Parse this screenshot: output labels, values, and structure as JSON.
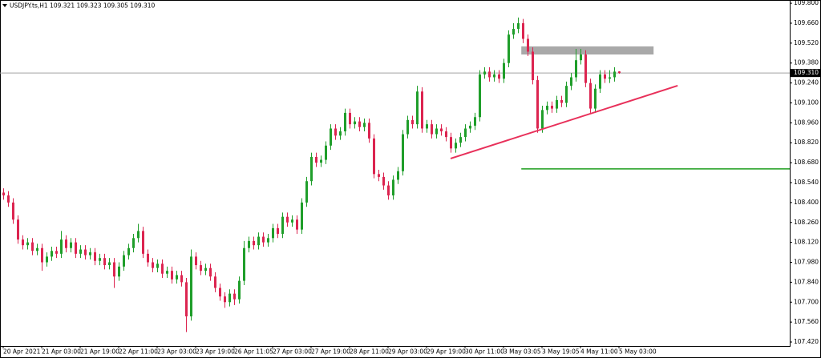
{
  "chart_data": {
    "type": "candlestick",
    "symbol": "USDJPY.ts,H1",
    "ohlc_labels": [
      "109.321",
      "109.323",
      "109.305",
      "109.310"
    ],
    "categories": [
      "20 Apr 2021",
      null,
      null,
      null,
      null,
      null,
      null,
      null,
      "21 Apr 03:00",
      null,
      null,
      null,
      null,
      null,
      null,
      null,
      "21 Apr 19:00",
      null,
      null,
      null,
      null,
      null,
      null,
      null,
      "22 Apr 11:00",
      null,
      null,
      null,
      null,
      null,
      null,
      null,
      "23 Apr 03:00",
      null,
      null,
      null,
      null,
      null,
      null,
      null,
      "23 Apr 19:00",
      null,
      null,
      null,
      null,
      null,
      null,
      null,
      "26 Apr 11:05",
      null,
      null,
      null,
      null,
      null,
      null,
      null,
      "27 Apr 03:00",
      null,
      null,
      null,
      null,
      null,
      null,
      null,
      "27 Apr 19:00",
      null,
      null,
      null,
      null,
      null,
      null,
      null,
      "28 Apr 11:00",
      null,
      null,
      null,
      null,
      null,
      null,
      null,
      "29 Apr 03:00",
      null,
      null,
      null,
      null,
      null,
      null,
      null,
      "29 Apr 19:00",
      null,
      null,
      null,
      null,
      null,
      null,
      null,
      "30 Apr 11:00",
      null,
      null,
      null,
      null,
      null,
      null,
      null,
      "3 May 03:05",
      null,
      null,
      null,
      null,
      null,
      null,
      null,
      "3 May 19:05",
      null,
      null,
      null,
      null,
      null,
      null,
      null,
      "4 May 11:00",
      null,
      null,
      null,
      null,
      null,
      null,
      null,
      "5 May 03:00"
    ],
    "open": [
      108.47,
      108.45,
      108.4,
      108.28,
      108.14,
      108.1,
      108.12,
      108.06,
      108.08,
      107.98,
      108.02,
      108.06,
      108.04,
      108.14,
      108.08,
      108.12,
      108.04,
      108.07,
      108.03,
      108.05,
      107.99,
      108.01,
      107.96,
      107.98,
      107.88,
      107.95,
      108.03,
      108.08,
      108.15,
      108.2,
      108.04,
      107.98,
      107.94,
      107.97,
      107.9,
      107.92,
      107.86,
      107.89,
      107.84,
      107.6,
      108.02,
      107.96,
      107.92,
      107.94,
      107.88,
      107.8,
      107.74,
      107.7,
      107.76,
      107.72,
      107.85,
      108.08,
      108.13,
      108.1,
      108.16,
      108.12,
      108.15,
      108.22,
      108.18,
      108.3,
      108.26,
      108.28,
      108.21,
      108.4,
      108.55,
      108.72,
      108.68,
      108.7,
      108.8,
      108.92,
      108.87,
      108.9,
      109.03,
      108.95,
      108.97,
      108.93,
      108.96,
      108.85,
      108.6,
      108.58,
      108.52,
      108.45,
      108.56,
      108.62,
      108.88,
      108.98,
      108.95,
      109.18,
      108.92,
      108.95,
      108.88,
      108.92,
      108.9,
      108.86,
      108.78,
      108.82,
      108.86,
      108.92,
      108.94,
      109.0,
      109.3,
      109.32,
      109.28,
      109.3,
      109.27,
      109.38,
      109.58,
      109.62,
      109.66,
      109.55,
      109.46,
      109.26,
      108.92,
      109.05,
      109.08,
      109.06,
      109.12,
      109.1,
      109.22,
      109.28,
      109.4,
      109.44,
      109.24,
      109.06,
      109.2,
      109.3,
      109.27,
      109.28,
      109.321
    ],
    "high": [
      108.5,
      108.48,
      108.43,
      108.31,
      108.17,
      108.15,
      108.15,
      108.11,
      108.11,
      108.05,
      108.09,
      108.09,
      108.2,
      108.17,
      108.15,
      108.15,
      108.1,
      108.1,
      108.08,
      108.08,
      108.04,
      108.04,
      108.01,
      108.01,
      107.98,
      108.06,
      108.11,
      108.18,
      108.25,
      108.23,
      108.07,
      108.01,
      108.0,
      108.0,
      107.95,
      107.95,
      107.92,
      107.92,
      107.87,
      108.07,
      108.05,
      107.99,
      107.97,
      107.97,
      107.91,
      107.83,
      107.77,
      107.79,
      107.79,
      107.88,
      108.13,
      108.16,
      108.16,
      108.19,
      108.19,
      108.18,
      108.25,
      108.25,
      108.33,
      108.33,
      108.31,
      108.31,
      108.43,
      108.58,
      108.75,
      108.75,
      108.73,
      108.83,
      108.95,
      108.95,
      108.93,
      109.06,
      109.06,
      109.0,
      109.0,
      108.99,
      108.99,
      108.88,
      108.63,
      108.61,
      108.55,
      108.59,
      108.65,
      108.91,
      109.01,
      109.01,
      109.22,
      109.21,
      108.98,
      108.98,
      108.95,
      108.95,
      108.93,
      108.89,
      108.85,
      108.89,
      108.95,
      108.97,
      109.03,
      109.33,
      109.35,
      109.35,
      109.33,
      109.33,
      109.41,
      109.61,
      109.66,
      109.7,
      109.69,
      109.58,
      109.49,
      109.29,
      109.08,
      109.11,
      109.11,
      109.15,
      109.15,
      109.25,
      109.31,
      109.48,
      109.48,
      109.47,
      109.27,
      109.23,
      109.33,
      109.33,
      109.33,
      109.35,
      109.323
    ],
    "low": [
      108.42,
      108.37,
      108.25,
      108.11,
      108.07,
      108.07,
      108.03,
      108.03,
      107.92,
      107.95,
      107.99,
      108.01,
      108.01,
      108.05,
      108.05,
      108.01,
      108.01,
      108.0,
      108.0,
      107.96,
      107.96,
      107.93,
      107.93,
      107.8,
      107.85,
      107.92,
      108.0,
      108.05,
      108.12,
      108.01,
      107.95,
      107.91,
      107.91,
      107.87,
      107.87,
      107.83,
      107.83,
      107.81,
      107.49,
      107.57,
      107.93,
      107.89,
      107.89,
      107.85,
      107.77,
      107.71,
      107.66,
      107.67,
      107.68,
      107.69,
      107.82,
      108.05,
      108.07,
      108.07,
      108.09,
      108.09,
      108.12,
      108.15,
      108.15,
      108.23,
      108.23,
      108.18,
      108.18,
      108.37,
      108.52,
      108.65,
      108.65,
      108.67,
      108.77,
      108.84,
      108.84,
      108.87,
      108.92,
      108.92,
      108.9,
      108.9,
      108.82,
      108.57,
      108.55,
      108.49,
      108.42,
      108.42,
      108.53,
      108.59,
      108.85,
      108.92,
      108.92,
      108.89,
      108.89,
      108.85,
      108.85,
      108.87,
      108.83,
      108.75,
      108.75,
      108.79,
      108.83,
      108.89,
      108.91,
      108.97,
      109.27,
      109.25,
      109.25,
      109.24,
      109.24,
      109.35,
      109.55,
      109.59,
      109.52,
      109.43,
      109.23,
      108.89,
      108.89,
      109.02,
      109.03,
      109.03,
      109.07,
      109.07,
      109.19,
      109.25,
      109.37,
      109.21,
      109.03,
      109.03,
      109.17,
      109.24,
      109.24,
      109.25,
      109.305
    ],
    "close": [
      108.45,
      108.4,
      108.28,
      108.14,
      108.1,
      108.12,
      108.06,
      108.08,
      107.98,
      108.02,
      108.06,
      108.04,
      108.14,
      108.08,
      108.12,
      108.04,
      108.07,
      108.03,
      108.05,
      107.99,
      108.01,
      107.96,
      107.98,
      107.88,
      107.95,
      108.03,
      108.08,
      108.15,
      108.2,
      108.04,
      107.98,
      107.94,
      107.97,
      107.9,
      107.92,
      107.86,
      107.89,
      107.84,
      107.6,
      108.02,
      107.96,
      107.92,
      107.94,
      107.88,
      107.8,
      107.74,
      107.7,
      107.76,
      107.72,
      107.85,
      108.08,
      108.13,
      108.1,
      108.16,
      108.12,
      108.15,
      108.22,
      108.18,
      108.3,
      108.26,
      108.28,
      108.21,
      108.4,
      108.55,
      108.72,
      108.68,
      108.7,
      108.8,
      108.92,
      108.87,
      108.9,
      109.03,
      108.95,
      108.97,
      108.93,
      108.96,
      108.85,
      108.6,
      108.58,
      108.52,
      108.45,
      108.56,
      108.62,
      108.88,
      108.98,
      108.95,
      109.18,
      108.92,
      108.95,
      108.88,
      108.92,
      108.9,
      108.86,
      108.78,
      108.82,
      108.86,
      108.92,
      108.94,
      109.0,
      109.3,
      109.32,
      109.28,
      109.3,
      109.27,
      109.38,
      109.58,
      109.62,
      109.66,
      109.55,
      109.46,
      109.26,
      108.92,
      109.05,
      109.08,
      109.06,
      109.12,
      109.1,
      109.22,
      109.28,
      109.4,
      109.44,
      109.24,
      109.06,
      109.2,
      109.3,
      109.27,
      109.28,
      109.32,
      109.31
    ],
    "up_color": "#1f9e2a",
    "down_color": "#dc2450",
    "ylim": [
      107.392,
      109.823
    ],
    "yticks": [
      {
        "value": 109.8,
        "label": "109.800"
      },
      {
        "value": 109.66,
        "label": "109.660"
      },
      {
        "value": 109.52,
        "label": "109.520"
      },
      {
        "value": 109.38,
        "label": "109.380"
      },
      {
        "value": 109.24,
        "label": "109.240"
      },
      {
        "value": 109.1,
        "label": "109.100"
      },
      {
        "value": 108.96,
        "label": "108.960"
      },
      {
        "value": 108.82,
        "label": "108.820"
      },
      {
        "value": 108.68,
        "label": "108.680"
      },
      {
        "value": 108.54,
        "label": "108.540"
      },
      {
        "value": 108.4,
        "label": "108.400"
      },
      {
        "value": 108.26,
        "label": "108.260"
      },
      {
        "value": 108.12,
        "label": "108.120"
      },
      {
        "value": 107.98,
        "label": "107.980"
      },
      {
        "value": 107.84,
        "label": "107.840"
      },
      {
        "value": 107.7,
        "label": "107.700"
      },
      {
        "value": 107.56,
        "label": "107.560"
      },
      {
        "value": 107.42,
        "label": "107.420"
      }
    ],
    "current_price": {
      "value": 109.31,
      "label": "109.310"
    },
    "zone": {
      "x": [
        107.7,
        135.2
      ],
      "y": [
        109.44,
        109.497
      ],
      "color": "#a9a9a9"
    },
    "trendline": {
      "x": [
        93,
        140.2
      ],
      "y": [
        108.709,
        109.221
      ],
      "color": "#e8305a"
    },
    "level": {
      "x_start": 107.7,
      "y": 108.636,
      "color": "#1e9e1e"
    }
  }
}
